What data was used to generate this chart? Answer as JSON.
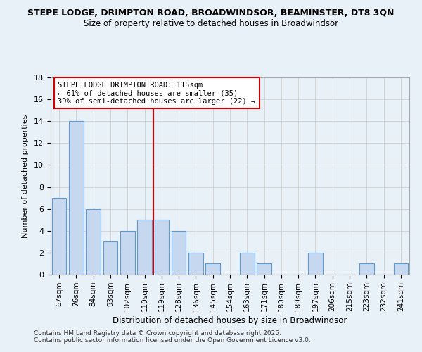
{
  "title_line1": "STEPE LODGE, DRIMPTON ROAD, BROADWINDSOR, BEAMINSTER, DT8 3QN",
  "title_line2": "Size of property relative to detached houses in Broadwindsor",
  "xlabel": "Distribution of detached houses by size in Broadwindsor",
  "ylabel": "Number of detached properties",
  "categories": [
    "67sqm",
    "76sqm",
    "84sqm",
    "93sqm",
    "102sqm",
    "110sqm",
    "119sqm",
    "128sqm",
    "136sqm",
    "145sqm",
    "154sqm",
    "163sqm",
    "171sqm",
    "180sqm",
    "189sqm",
    "197sqm",
    "206sqm",
    "215sqm",
    "223sqm",
    "232sqm",
    "241sqm"
  ],
  "values": [
    7,
    14,
    6,
    3,
    4,
    5,
    5,
    4,
    2,
    1,
    0,
    2,
    1,
    0,
    0,
    2,
    0,
    0,
    1,
    0,
    1
  ],
  "bar_color": "#c5d8f0",
  "bar_edge_color": "#5b9bd5",
  "background_color": "#e8f0f8",
  "grid_color": "#cccccc",
  "vline_x": 5.5,
  "vline_color": "#cc0000",
  "annotation_text": "STEPE LODGE DRIMPTON ROAD: 115sqm\n← 61% of detached houses are smaller (35)\n39% of semi-detached houses are larger (22) →",
  "annotation_box_color": "white",
  "annotation_box_edge": "#cc0000",
  "ylim": [
    0,
    18
  ],
  "yticks": [
    0,
    2,
    4,
    6,
    8,
    10,
    12,
    14,
    16,
    18
  ],
  "footer_line1": "Contains HM Land Registry data © Crown copyright and database right 2025.",
  "footer_line2": "Contains public sector information licensed under the Open Government Licence v3.0."
}
